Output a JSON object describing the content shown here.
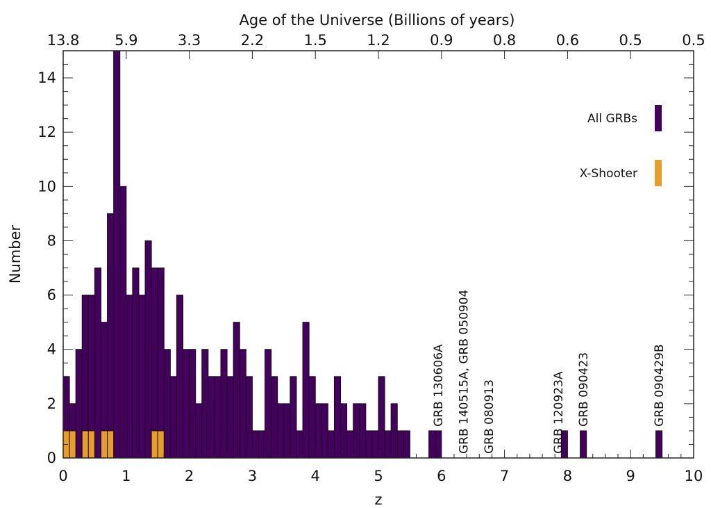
{
  "chart_data": {
    "type": "histogram",
    "title": "",
    "xlabel": "z",
    "ylabel": "Number",
    "top_axis_label": "Age of the Universe (Billions of years)",
    "xlim": [
      0,
      10
    ],
    "ylim": [
      0,
      15
    ],
    "bin_width": 0.1,
    "x_ticks": [
      "0",
      "1",
      "2",
      "3",
      "4",
      "5",
      "6",
      "7",
      "8",
      "9",
      "10"
    ],
    "y_ticks": [
      "0",
      "2",
      "4",
      "6",
      "8",
      "10",
      "12",
      "14"
    ],
    "top_ticks": [
      {
        "label": "13.8",
        "z": 0
      },
      {
        "label": "5.9",
        "z": 1
      },
      {
        "label": "3.3",
        "z": 2
      },
      {
        "label": "2.2",
        "z": 3
      },
      {
        "label": "1.5",
        "z": 4
      },
      {
        "label": "1.2",
        "z": 5
      },
      {
        "label": "0.9",
        "z": 6
      },
      {
        "label": "0.8",
        "z": 7
      },
      {
        "label": "0.6",
        "z": 8
      },
      {
        "label": "0.5",
        "z": 9
      },
      {
        "label": "0.5",
        "z": 10
      }
    ],
    "bin_starts": [
      0.0,
      0.1,
      0.2,
      0.3,
      0.4,
      0.5,
      0.6,
      0.7,
      0.8,
      0.9,
      1.0,
      1.1,
      1.2,
      1.3,
      1.4,
      1.5,
      1.6,
      1.7,
      1.8,
      1.9,
      2.0,
      2.1,
      2.2,
      2.3,
      2.4,
      2.5,
      2.6,
      2.7,
      2.8,
      2.9,
      3.0,
      3.1,
      3.2,
      3.3,
      3.4,
      3.5,
      3.6,
      3.7,
      3.8,
      3.9,
      4.0,
      4.1,
      4.2,
      4.3,
      4.4,
      4.5,
      4.6,
      4.7,
      4.8,
      4.9,
      5.0,
      5.1,
      5.2,
      5.3,
      5.4,
      5.5,
      5.6,
      5.7,
      5.8,
      5.9,
      6.0,
      6.1,
      6.2,
      6.3,
      6.4,
      6.5,
      6.6,
      6.7,
      6.8,
      6.9,
      7.0,
      7.1,
      7.2,
      7.3,
      7.4,
      7.5,
      7.6,
      7.7,
      7.8,
      7.9,
      8.0,
      8.1,
      8.2,
      8.3,
      8.4,
      8.5,
      8.6,
      8.7,
      8.8,
      8.9,
      9.0,
      9.1,
      9.2,
      9.3,
      9.4,
      9.5,
      9.6,
      9.7,
      9.8,
      9.9
    ],
    "series": [
      {
        "name": "All GRBs",
        "color": "#45005f",
        "values": [
          3,
          2,
          4,
          6,
          6,
          7,
          5,
          9,
          15,
          10,
          6,
          7,
          6,
          8,
          7,
          7,
          4,
          3,
          6,
          4,
          4,
          2,
          4,
          3,
          3,
          4,
          3,
          5,
          4,
          3,
          1,
          1,
          4,
          3,
          2,
          2,
          3,
          1,
          5,
          3,
          2,
          2,
          1,
          3,
          2,
          1,
          2,
          2,
          1,
          1,
          3,
          1,
          2,
          1,
          1,
          0,
          0,
          0,
          1,
          1,
          0,
          0,
          0,
          0,
          0,
          0,
          0,
          0,
          0,
          0,
          0,
          0,
          0,
          0,
          0,
          0,
          0,
          0,
          0,
          1,
          0,
          0,
          1,
          0,
          0,
          0,
          0,
          0,
          0,
          0,
          0,
          0,
          0,
          0,
          1,
          0,
          0,
          0,
          0,
          0
        ]
      },
      {
        "name": "X-Shooter",
        "color": "#e89c2a",
        "values": [
          1,
          1,
          0,
          1,
          1,
          0,
          1,
          1,
          0,
          0,
          0,
          0,
          0,
          0,
          1,
          1,
          0,
          0,
          0,
          0,
          0,
          0,
          0,
          0,
          0,
          0,
          0,
          0,
          0,
          0,
          0,
          0,
          0,
          0,
          0,
          0,
          0,
          0,
          0,
          0,
          0,
          0,
          0,
          0,
          0,
          0,
          0,
          0,
          0,
          0,
          0,
          0,
          0,
          0,
          0,
          0,
          0,
          0,
          0,
          0,
          0,
          0,
          0,
          0,
          0,
          0,
          0,
          0,
          0,
          0,
          0,
          0,
          0,
          0,
          0,
          0,
          0,
          0,
          0,
          0,
          0,
          0,
          0,
          0,
          0,
          0,
          0,
          0,
          0,
          0,
          0,
          0,
          0,
          0,
          0,
          0,
          0,
          0,
          0,
          0
        ]
      }
    ],
    "annotations": [
      {
        "text": "GRB 130606A",
        "z": 5.9
      },
      {
        "text": "GRB 140515A,   GRB 050904",
        "z": 6.3
      },
      {
        "text": "GRB 080913",
        "z": 6.7
      },
      {
        "text": "GRB 120923A",
        "z": 7.8
      },
      {
        "text": "GRB 090423",
        "z": 8.2
      },
      {
        "text": "GRB 090429B",
        "z": 9.4
      }
    ],
    "legend_position": "top-right",
    "grid": false
  }
}
